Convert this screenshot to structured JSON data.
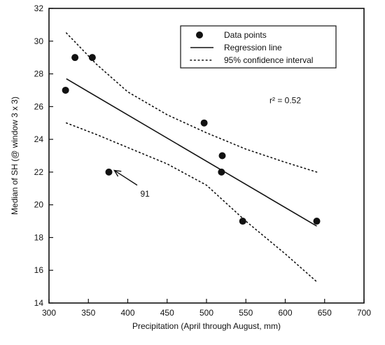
{
  "chart_data": {
    "type": "scatter",
    "xlabel": "Precipitation (April through August, mm)",
    "ylabel": "Median of SH (@ window 3 x 3)",
    "xlim": [
      300,
      700
    ],
    "ylim": [
      14,
      32
    ],
    "xticks": [
      300,
      350,
      400,
      450,
      500,
      550,
      600,
      650,
      700
    ],
    "yticks": [
      14,
      16,
      18,
      20,
      22,
      24,
      26,
      28,
      30,
      32
    ],
    "grid": false,
    "legend_position": "top-right",
    "legend": {
      "points": "Data points",
      "regression": "Regression line",
      "ci": "95% confidence interval"
    },
    "series": [
      {
        "name": "Data points",
        "kind": "points",
        "points": [
          {
            "x": 321,
            "y": 27
          },
          {
            "x": 333,
            "y": 29
          },
          {
            "x": 355,
            "y": 29
          },
          {
            "x": 376,
            "y": 22
          },
          {
            "x": 497,
            "y": 25
          },
          {
            "x": 520,
            "y": 23
          },
          {
            "x": 519,
            "y": 22
          },
          {
            "x": 546,
            "y": 19
          },
          {
            "x": 640,
            "y": 19
          }
        ]
      },
      {
        "name": "Regression line",
        "kind": "line",
        "points": [
          {
            "x": 322,
            "y": 27.7
          },
          {
            "x": 640,
            "y": 18.7
          }
        ]
      },
      {
        "name": "95% confidence interval",
        "kind": "dotted",
        "bands": [
          [
            {
              "x": 322,
              "y": 30.5
            },
            {
              "x": 360,
              "y": 28.6
            },
            {
              "x": 400,
              "y": 26.9
            },
            {
              "x": 450,
              "y": 25.5
            },
            {
              "x": 500,
              "y": 24.4
            },
            {
              "x": 550,
              "y": 23.4
            },
            {
              "x": 600,
              "y": 22.6
            },
            {
              "x": 640,
              "y": 22.0
            }
          ],
          [
            {
              "x": 322,
              "y": 25.0
            },
            {
              "x": 360,
              "y": 24.3
            },
            {
              "x": 400,
              "y": 23.5
            },
            {
              "x": 450,
              "y": 22.5
            },
            {
              "x": 500,
              "y": 21.2
            },
            {
              "x": 550,
              "y": 19.0
            },
            {
              "x": 600,
              "y": 17.0
            },
            {
              "x": 640,
              "y": 15.3
            }
          ]
        ]
      }
    ],
    "annotations": {
      "r2_text": "r² = 0.52",
      "r2_at": {
        "x": 580,
        "y": 26.2
      },
      "arrow_label": "91",
      "arrow_label_at": {
        "x": 416,
        "y": 20.5
      },
      "arrow_from": {
        "x": 412,
        "y": 21.2
      },
      "arrow_to": {
        "x": 383,
        "y": 22.1
      }
    }
  }
}
